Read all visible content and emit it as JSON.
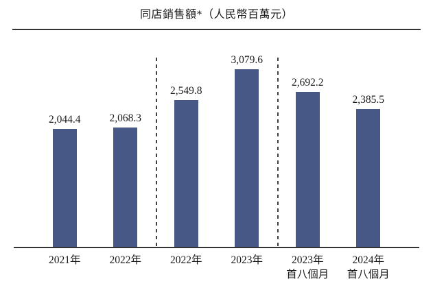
{
  "chart_data": {
    "type": "bar",
    "title": "同店銷售額*（人民幣百萬元）",
    "unit": "人民幣百萬元",
    "categories": [
      "2021年",
      "2022年",
      "2022年",
      "2023年",
      "2023年 首八個月",
      "2024年 首八個月"
    ],
    "values": [
      2044.4,
      2068.3,
      2549.8,
      3079.6,
      2692.2,
      2385.5
    ],
    "ylim": [
      0,
      3200
    ],
    "grid": false,
    "legend": null,
    "bar_color": "#475887",
    "separators": "two vertical dashed lines dividing years 2021-2022 / 2022-2023 / eight-month periods",
    "bars": [
      {
        "value_label": "2,044.4",
        "cat_line1": "2021年",
        "cat_line2": ""
      },
      {
        "value_label": "2,068.3",
        "cat_line1": "2022年",
        "cat_line2": ""
      },
      {
        "value_label": "2,549.8",
        "cat_line1": "2022年",
        "cat_line2": ""
      },
      {
        "value_label": "3,079.6",
        "cat_line1": "2023年",
        "cat_line2": ""
      },
      {
        "value_label": "2,692.2",
        "cat_line1": "2023年",
        "cat_line2": "首八個月"
      },
      {
        "value_label": "2,385.5",
        "cat_line1": "2024年",
        "cat_line2": "首八個月"
      }
    ]
  }
}
